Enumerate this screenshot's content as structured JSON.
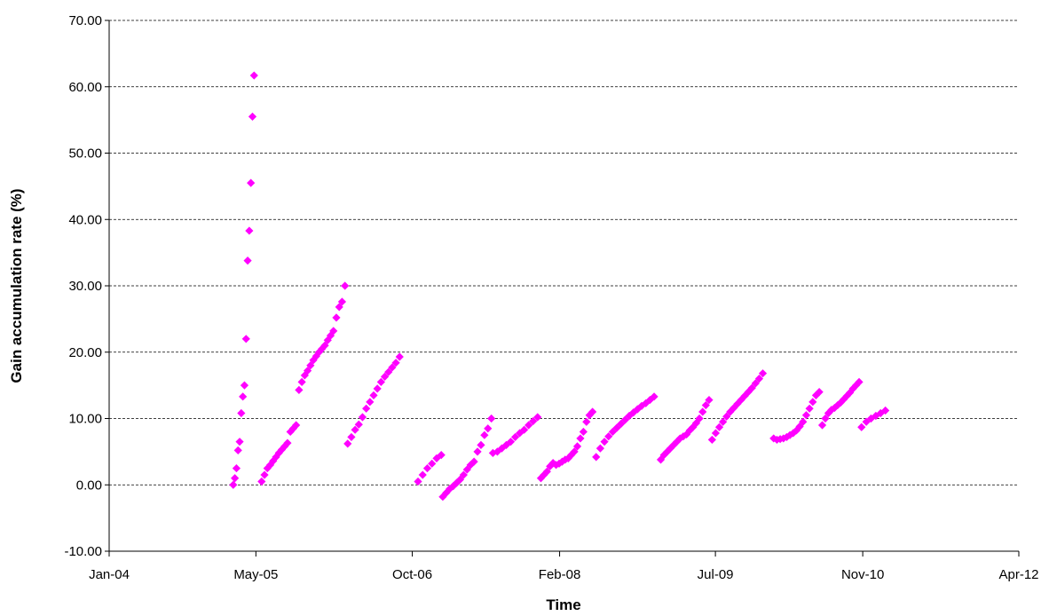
{
  "chart_data": {
    "type": "scatter",
    "title": "",
    "xlabel": "Time",
    "ylabel": "Gain accumulation rate (%)",
    "marker": "diamond",
    "marker_color": "#ff00ff",
    "grid": "horizontal dashed",
    "legend": "none",
    "ylim": [
      -10,
      70
    ],
    "yticks": [
      "-10.00",
      "0.00",
      "10.00",
      "20.00",
      "30.00",
      "40.00",
      "50.00",
      "60.00",
      "70.00"
    ],
    "xlim": [
      "2004-01-01",
      "2012-04-01"
    ],
    "xticks": [
      "Jan-04",
      "May-05",
      "Oct-06",
      "Feb-08",
      "Jul-09",
      "Nov-10",
      "Apr-12"
    ],
    "xtick_dates": [
      "2004-01-01",
      "2005-05-01",
      "2006-10-01",
      "2008-02-01",
      "2009-07-01",
      "2010-11-01",
      "2012-04-01"
    ],
    "series": [
      {
        "segments": [
          {
            "x_start": "2005-02-15",
            "x_end": "2005-04-25",
            "y": [
              0.0,
              1.0,
              2.5,
              5.2,
              6.5,
              10.8,
              13.3,
              15.0,
              22.0,
              33.8,
              38.3,
              45.5,
              55.5,
              61.7
            ]
          },
          {
            "x_start": "2005-05-20",
            "x_end": "2006-02-20",
            "y": [
              0.5,
              1.5,
              2.5,
              3.0,
              3.6,
              4.2,
              4.8,
              5.3,
              5.8,
              6.3,
              8.0,
              8.5,
              9.0,
              14.3,
              15.5,
              16.5,
              17.2,
              18.0,
              18.8,
              19.4,
              20.0,
              20.5,
              21.0,
              21.8,
              22.5,
              23.2,
              25.2,
              26.8,
              27.6,
              30.0
            ]
          },
          {
            "x_start": "2006-03-01",
            "x_end": "2006-08-20",
            "y": [
              6.2,
              7.2,
              8.3,
              9.1,
              10.2,
              11.5,
              12.5,
              13.5,
              14.5,
              15.5,
              16.3,
              17.0,
              17.7,
              18.4,
              19.3
            ]
          },
          {
            "x_start": "2006-10-20",
            "x_end": "2007-01-05",
            "y": [
              0.5,
              1.5,
              2.5,
              3.2,
              4.0,
              4.5
            ]
          },
          {
            "x_start": "2007-01-10",
            "x_end": "2007-06-20",
            "y": [
              -1.8,
              -1.2,
              -0.6,
              -0.2,
              0.3,
              0.8,
              1.5,
              2.3,
              3.0,
              3.5,
              5.0,
              6.0,
              7.5,
              8.5,
              10.0
            ]
          },
          {
            "x_start": "2007-06-25",
            "x_end": "2007-11-20",
            "y": [
              4.8,
              5.0,
              5.5,
              6.0,
              6.5,
              7.2,
              7.8,
              8.3,
              9.0,
              9.6,
              10.2
            ]
          },
          {
            "x_start": "2007-12-01",
            "x_end": "2008-05-20",
            "y": [
              1.0,
              1.5,
              2.0,
              2.8,
              3.3,
              3.0,
              3.2,
              3.5,
              3.8,
              4.0,
              4.5,
              5.0,
              5.8,
              7.0,
              8.0,
              9.5,
              10.5,
              11.0
            ]
          },
          {
            "x_start": "2008-06-01",
            "x_end": "2008-12-10",
            "y": [
              4.2,
              5.5,
              6.5,
              7.3,
              8.0,
              8.6,
              9.2,
              9.8,
              10.4,
              10.9,
              11.4,
              11.9,
              12.3,
              12.8,
              13.3
            ]
          },
          {
            "x_start": "2009-01-01",
            "x_end": "2009-06-10",
            "y": [
              3.8,
              4.5,
              5.0,
              5.5,
              6.0,
              6.5,
              7.0,
              7.3,
              7.6,
              8.2,
              8.7,
              9.3,
              10.0,
              11.0,
              12.0,
              12.8
            ]
          },
          {
            "x_start": "2009-06-20",
            "x_end": "2009-12-05",
            "y": [
              6.8,
              7.8,
              8.7,
              9.5,
              10.3,
              11.0,
              11.6,
              12.2,
              12.8,
              13.4,
              14.0,
              14.6,
              15.3,
              16.0,
              16.8
            ]
          },
          {
            "x_start": "2010-01-10",
            "x_end": "2010-06-10",
            "y": [
              7.0,
              6.8,
              6.9,
              7.0,
              7.2,
              7.5,
              7.8,
              8.2,
              8.8,
              9.5,
              10.5,
              11.5,
              12.5,
              13.5,
              14.0
            ]
          },
          {
            "x_start": "2010-06-20",
            "x_end": "2010-10-20",
            "y": [
              9.0,
              10.0,
              10.8,
              11.3,
              11.6,
              12.0,
              12.4,
              12.9,
              13.4,
              13.9,
              14.5,
              15.0,
              15.5
            ]
          },
          {
            "x_start": "2010-10-28",
            "x_end": "2011-01-15",
            "y": [
              8.7,
              9.5,
              10.0,
              10.4,
              10.8,
              11.2
            ]
          }
        ]
      }
    ]
  }
}
